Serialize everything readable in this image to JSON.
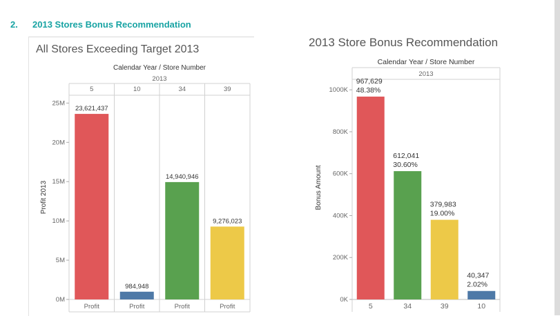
{
  "section": {
    "number": "2.",
    "title": "2013 Stores Bonus Recommendation"
  },
  "colors": {
    "heading": "#17a3a3",
    "red": "#e05759",
    "blue": "#4e79a7",
    "green": "#59a14f",
    "yellow": "#edc948"
  },
  "chart_data": [
    {
      "type": "bar",
      "title": "All Stores Exceeding Target 2013",
      "header_title": "Calendar Year / Store Number",
      "year": "2013",
      "categories": [
        "5",
        "10",
        "34",
        "39"
      ],
      "values": [
        23621437,
        984948,
        14940946,
        9276023
      ],
      "labels": [
        "23,621,437",
        "984,948",
        "14,940,946",
        "9,276,023"
      ],
      "bar_colors": [
        "#e05759",
        "#4e79a7",
        "#59a14f",
        "#edc948"
      ],
      "measure_labels": [
        "Profit",
        "Profit",
        "Profit",
        "Profit"
      ],
      "ylabel": "Profit 2013",
      "ylim": [
        0,
        26000000
      ],
      "yticks": [
        0,
        5000000,
        10000000,
        15000000,
        20000000,
        25000000
      ],
      "ytick_labels": [
        "0M",
        "5M",
        "10M",
        "15M",
        "20M",
        "25M"
      ],
      "grid": false
    },
    {
      "type": "bar",
      "title": "2013 Store Bonus Recommendation",
      "header_title": "Calendar Year / Store Number",
      "year": "2013",
      "categories": [
        "5",
        "34",
        "39",
        "10"
      ],
      "values": [
        967629,
        612041,
        379983,
        40347
      ],
      "labels": [
        "967,629",
        "612,041",
        "379,983",
        "40,347"
      ],
      "percent_labels": [
        "48.38%",
        "30.60%",
        "19.00%",
        "2.02%"
      ],
      "bar_colors": [
        "#e05759",
        "#59a14f",
        "#edc948",
        "#4e79a7"
      ],
      "ylabel": "Bonus Amount",
      "ylim": [
        0,
        1050000
      ],
      "yticks": [
        0,
        200000,
        400000,
        600000,
        800000,
        1000000
      ],
      "ytick_labels": [
        "0K",
        "200K",
        "400K",
        "600K",
        "800K",
        "1000K"
      ],
      "grid": false
    }
  ]
}
